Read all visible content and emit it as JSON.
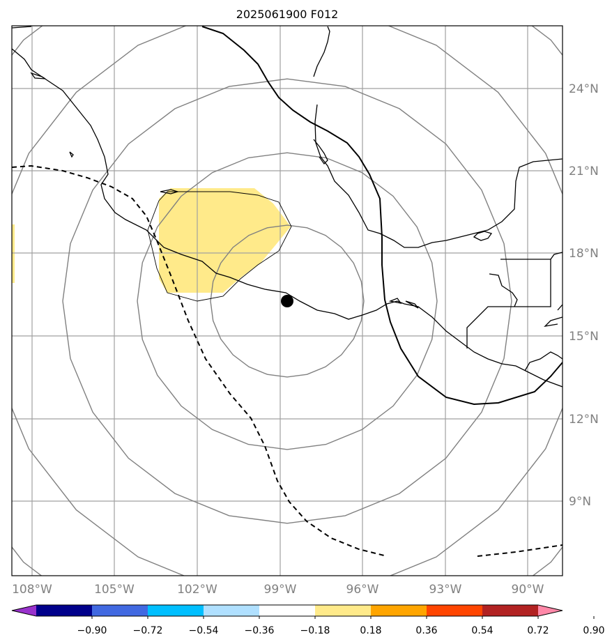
{
  "chart_data": {
    "type": "map",
    "title": "2025061900 F012",
    "lon_ticks": [
      "108°W",
      "105°W",
      "102°W",
      "99°W",
      "96°W",
      "93°W",
      "90°W"
    ],
    "lat_ticks": [
      "24°N",
      "21°N",
      "18°N",
      "15°N",
      "12°N",
      "9°N"
    ],
    "grid": true,
    "storm_center": {
      "lon": -98.8,
      "lat": 16.2
    },
    "range_rings": 5,
    "colorbar": {
      "ticks": [
        "−0.90",
        "−0.72",
        "−0.54",
        "−0.36",
        "−0.18",
        "0.18",
        "0.36",
        "0.54",
        "0.72",
        "0.90"
      ],
      "colors": [
        "#9932cc",
        "#00008b",
        "#4169e1",
        "#00bfff",
        "#b0e0ff",
        "#ffffff",
        "#ffea8a",
        "#ffa500",
        "#ff4500",
        "#b22222",
        "#ff88a8"
      ],
      "extend": "both"
    },
    "shaded_value_range": [
      0.18,
      0.36
    ],
    "shaded_color": "#ffea8a"
  }
}
